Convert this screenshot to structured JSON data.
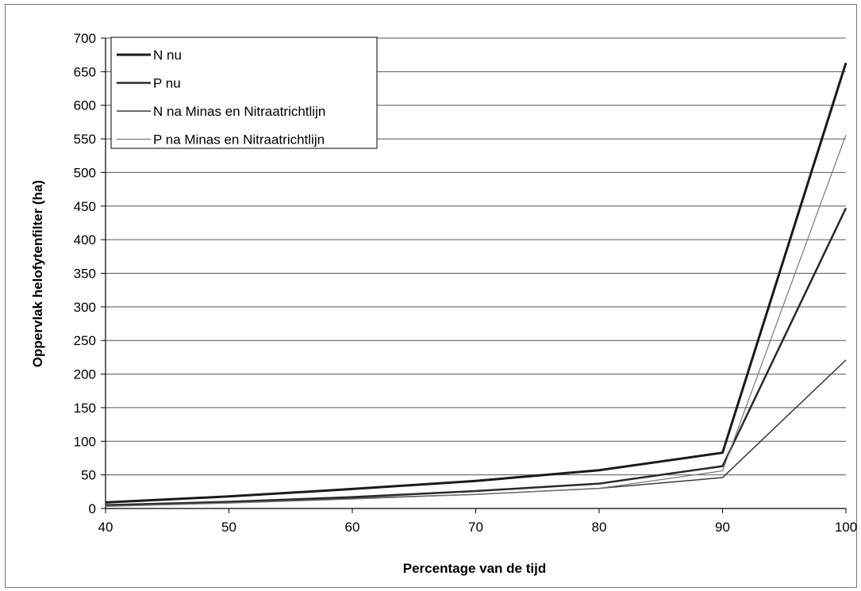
{
  "chart_data": {
    "type": "line",
    "title": "",
    "xlabel": "Percentage van de tijd",
    "ylabel": "Oppervlak helofytenfilter (ha)",
    "x": [
      40,
      50,
      60,
      70,
      80,
      90,
      100
    ],
    "x_ticks": [
      "40",
      "50",
      "60",
      "70",
      "80",
      "90",
      "100"
    ],
    "y_ticks": [
      "0",
      "50",
      "100",
      "150",
      "200",
      "250",
      "300",
      "350",
      "400",
      "450",
      "500",
      "550",
      "600",
      "650",
      "700"
    ],
    "xlim": [
      40,
      100
    ],
    "ylim": [
      0,
      700
    ],
    "grid": true,
    "legend_position": "top-left",
    "series": [
      {
        "name": "N nu",
        "color": "#1a1a1a",
        "width": 3,
        "values": [
          9,
          18,
          29,
          41,
          57,
          83,
          663
        ]
      },
      {
        "name": "P nu",
        "color": "#2a2a2a",
        "width": 2.5,
        "values": [
          5,
          10,
          17,
          26,
          37,
          63,
          447
        ]
      },
      {
        "name": "N na Minas en Nitraatrichtlijn",
        "color": "#3a3a3a",
        "width": 1.5,
        "values": [
          4,
          9,
          15,
          21,
          30,
          46,
          221
        ]
      },
      {
        "name": "P na Minas en Nitraatrichtlijn",
        "color": "#777777",
        "width": 1.2,
        "values": [
          3,
          8,
          14,
          21,
          30,
          56,
          556
        ]
      }
    ]
  }
}
